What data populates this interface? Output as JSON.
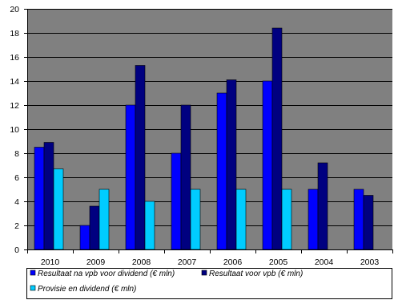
{
  "chart_data": {
    "type": "bar",
    "title": "",
    "xlabel": "",
    "ylabel": "",
    "categories": [
      "2010",
      "2009",
      "2008",
      "2007",
      "2006",
      "2005",
      "2004",
      "2003"
    ],
    "ylim": [
      0,
      20
    ],
    "yticks": [
      0,
      2,
      4,
      6,
      8,
      10,
      12,
      14,
      16,
      18,
      20
    ],
    "grid": true,
    "legend_placement": "bottom",
    "plot_background": "#808080",
    "gridline_color": "#000000",
    "series": [
      {
        "name": "Resultaat na vpb voor dividend (€ mln)",
        "color": "#0000ff",
        "values": [
          8.5,
          2,
          12,
          8,
          13,
          14,
          5,
          5
        ]
      },
      {
        "name": "Resultaat voor vpb (€ mln)",
        "color": "#000080",
        "values": [
          8.9,
          3.6,
          15.3,
          12,
          14.1,
          18.4,
          7.2,
          4.5
        ]
      },
      {
        "name": "Provisie en dividend (€ mln)",
        "color": "#00ccff",
        "values": [
          6.7,
          5,
          4,
          5,
          5,
          5,
          null,
          null
        ]
      }
    ]
  }
}
